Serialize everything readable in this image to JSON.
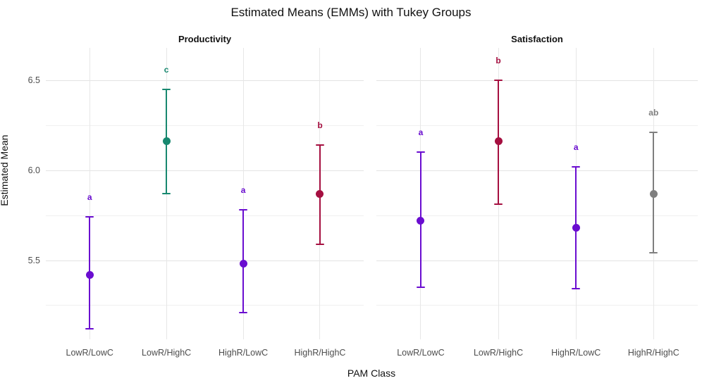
{
  "title": "Estimated Means (EMMs) with Tukey Groups",
  "chart_data": {
    "type": "scatter",
    "subtype": "point-range-with-error-bars",
    "title": "Estimated Means (EMMs) with Tukey Groups",
    "xlabel": "PAM Class",
    "ylabel": "Estimated Mean",
    "ylim": [
      5.06,
      6.68
    ],
    "grid": true,
    "legend_position": "none",
    "x_categories": [
      "LowR/LowC",
      "LowR/HighC",
      "HighR/LowC",
      "HighR/HighC"
    ],
    "y_major_ticks": [
      6.5,
      6.0,
      5.5
    ],
    "y_minor_ticks": [
      6.25,
      5.75,
      5.25
    ],
    "group_colors": {
      "a": "#6a0dd0",
      "b": "#a50f40",
      "c": "#17886f",
      "ab": "#7f7f7f"
    },
    "facets": [
      {
        "label": "Productivity",
        "points": [
          {
            "category": "LowR/LowC",
            "mean": 5.42,
            "lower": 5.12,
            "upper": 5.74,
            "letter": "a",
            "group": "a"
          },
          {
            "category": "LowR/HighC",
            "mean": 6.16,
            "lower": 5.87,
            "upper": 6.45,
            "letter": "c",
            "group": "c"
          },
          {
            "category": "HighR/LowC",
            "mean": 5.48,
            "lower": 5.21,
            "upper": 5.78,
            "letter": "a",
            "group": "a"
          },
          {
            "category": "HighR/HighC",
            "mean": 5.87,
            "lower": 5.59,
            "upper": 6.14,
            "letter": "b",
            "group": "b"
          }
        ]
      },
      {
        "label": "Satisfaction",
        "points": [
          {
            "category": "LowR/LowC",
            "mean": 5.72,
            "lower": 5.35,
            "upper": 6.1,
            "letter": "a",
            "group": "a"
          },
          {
            "category": "LowR/HighC",
            "mean": 6.16,
            "lower": 5.81,
            "upper": 6.5,
            "letter": "b",
            "group": "b"
          },
          {
            "category": "HighR/LowC",
            "mean": 5.68,
            "lower": 5.34,
            "upper": 6.02,
            "letter": "a",
            "group": "a"
          },
          {
            "category": "HighR/HighC",
            "mean": 5.87,
            "lower": 5.54,
            "upper": 6.21,
            "letter": "ab",
            "group": "ab"
          }
        ]
      }
    ]
  }
}
